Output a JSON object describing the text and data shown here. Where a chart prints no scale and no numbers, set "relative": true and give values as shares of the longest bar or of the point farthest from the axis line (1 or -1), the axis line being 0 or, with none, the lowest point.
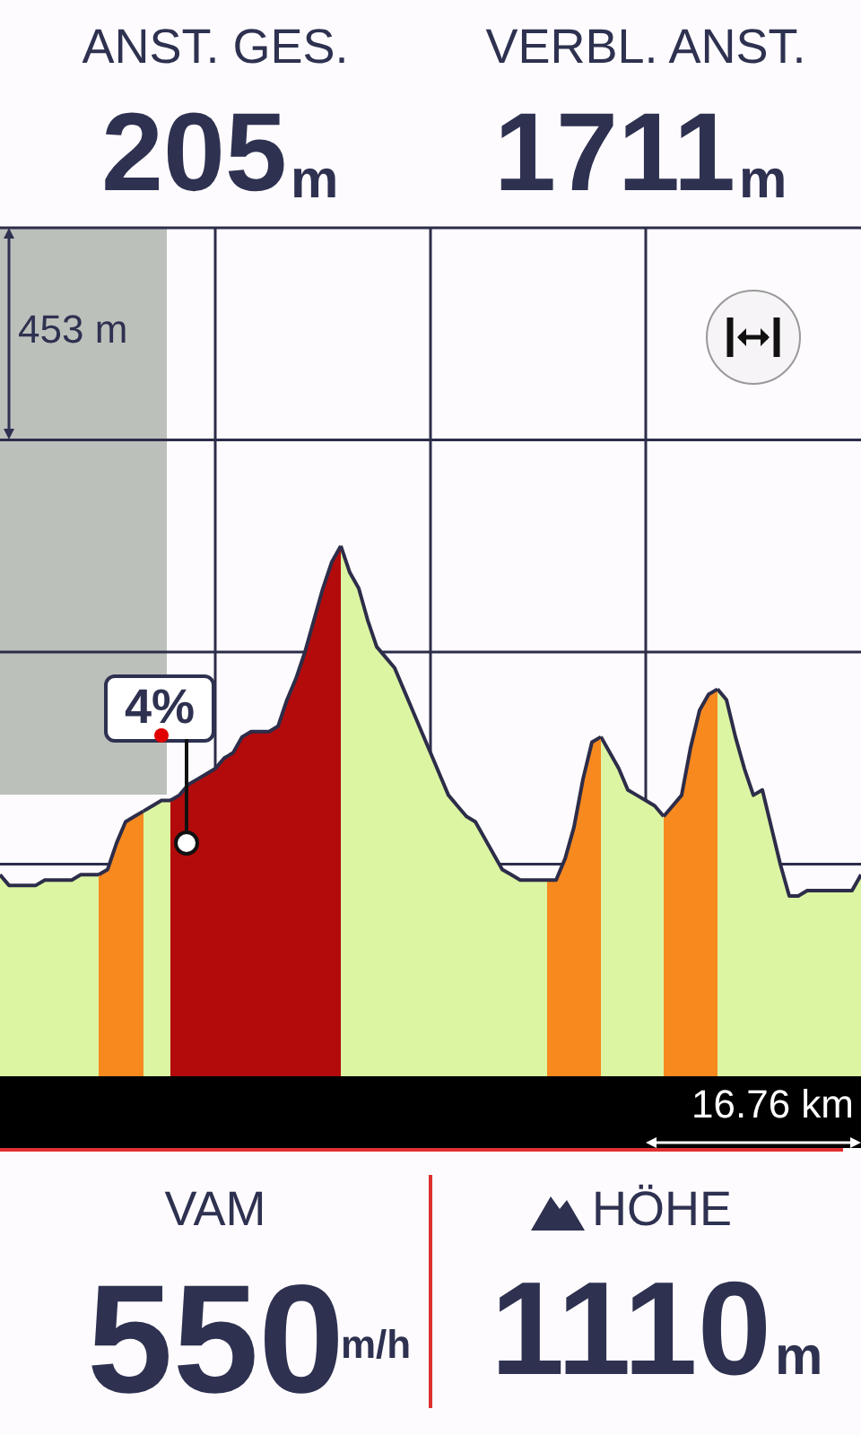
{
  "chart_data": {
    "type": "area",
    "relative": true,
    "grid": true,
    "legend": false,
    "categories": [
      null,
      null,
      null,
      null,
      null,
      null,
      null,
      null,
      null,
      null,
      null,
      null,
      null,
      null,
      null,
      null,
      null,
      null,
      null,
      null,
      null,
      null,
      null,
      null,
      null,
      null,
      null,
      null,
      null,
      null,
      null,
      null,
      null,
      null,
      null,
      null,
      null,
      null,
      null,
      null,
      null,
      null,
      null,
      null,
      null,
      null,
      null,
      null,
      null,
      null,
      null,
      null,
      null,
      null,
      null,
      null,
      null,
      null,
      null,
      null,
      null,
      null,
      null,
      null,
      null,
      null,
      null,
      null,
      null,
      null,
      null,
      null,
      null,
      null,
      null,
      null,
      null,
      null,
      null,
      null,
      null,
      null,
      null,
      null,
      null,
      null,
      null,
      null,
      null,
      null,
      null,
      null,
      null,
      null,
      null,
      null,
      null
    ],
    "series": [
      {
        "color": "#dcf5a2",
        "values": [
          0.38,
          0.36,
          0.36,
          0.36,
          0.36,
          0.37,
          0.37,
          0.37,
          0.37,
          0.38,
          0.38,
          0.38,
          null,
          null,
          null,
          null,
          null,
          null,
          null,
          null,
          null,
          null,
          null,
          null,
          null,
          null,
          null,
          null,
          null,
          null,
          null,
          null,
          null,
          null,
          null,
          null,
          null,
          null,
          null,
          null,
          null,
          null,
          null,
          null,
          null,
          null,
          null,
          null,
          null,
          null,
          null,
          null,
          null,
          null,
          null,
          null,
          null,
          null,
          null,
          null,
          null,
          null,
          null,
          null,
          null,
          null,
          null,
          null,
          null,
          null,
          null,
          null,
          null,
          null,
          null,
          null,
          null,
          null,
          null,
          null,
          null,
          null,
          null,
          null,
          null,
          null,
          null,
          null,
          null,
          null,
          null,
          null,
          null,
          null,
          null,
          null,
          null
        ]
      },
      {
        "color": "#f7891f",
        "values": [
          null,
          null,
          null,
          null,
          null,
          null,
          null,
          null,
          null,
          null,
          null,
          0.38,
          0.39,
          0.44,
          0.48,
          0.49,
          0.5,
          null,
          null,
          null,
          null,
          null,
          null,
          null,
          null,
          null,
          null,
          null,
          null,
          null,
          null,
          null,
          null,
          null,
          null,
          null,
          null,
          null,
          null,
          null,
          null,
          null,
          null,
          null,
          null,
          null,
          null,
          null,
          null,
          null,
          null,
          null,
          null,
          null,
          null,
          null,
          null,
          null,
          null,
          null,
          null,
          null,
          null,
          null,
          null,
          null,
          null,
          null,
          null,
          null,
          null,
          null,
          null,
          null,
          null,
          null,
          null,
          null,
          null,
          null,
          null,
          null,
          null,
          null,
          null,
          null,
          null,
          null,
          null,
          null,
          null,
          null,
          null,
          null,
          null,
          null,
          null
        ]
      },
      {
        "color": "#dcf5a2",
        "values": [
          null,
          null,
          null,
          null,
          null,
          null,
          null,
          null,
          null,
          null,
          null,
          null,
          null,
          null,
          null,
          null,
          0.5,
          0.51,
          0.52,
          0.52,
          null,
          null,
          null,
          null,
          null,
          null,
          null,
          null,
          null,
          null,
          null,
          null,
          null,
          null,
          null,
          null,
          null,
          null,
          null,
          null,
          null,
          null,
          null,
          null,
          null,
          null,
          null,
          null,
          null,
          null,
          null,
          null,
          null,
          null,
          null,
          null,
          null,
          null,
          null,
          null,
          null,
          null,
          null,
          null,
          null,
          null,
          null,
          null,
          null,
          null,
          null,
          null,
          null,
          null,
          null,
          null,
          null,
          null,
          null,
          null,
          null,
          null,
          null,
          null,
          null,
          null,
          null,
          null,
          null,
          null,
          null,
          null,
          null,
          null,
          null,
          null,
          null
        ]
      },
      {
        "color": "#b30b0b",
        "values": [
          null,
          null,
          null,
          null,
          null,
          null,
          null,
          null,
          null,
          null,
          null,
          null,
          null,
          null,
          null,
          null,
          null,
          null,
          null,
          0.52,
          0.53,
          0.55,
          0.56,
          0.57,
          0.58,
          0.6,
          0.61,
          0.64,
          0.65,
          0.65,
          0.65,
          0.66,
          0.71,
          0.75,
          0.8,
          0.86,
          0.92,
          0.97,
          1,
          null,
          null,
          null,
          null,
          null,
          null,
          null,
          null,
          null,
          null,
          null,
          null,
          null,
          null,
          null,
          null,
          null,
          null,
          null,
          null,
          null,
          null,
          null,
          null,
          null,
          null,
          null,
          null,
          null,
          null,
          null,
          null,
          null,
          null,
          null,
          null,
          null,
          null,
          null,
          null,
          null,
          null,
          null,
          null,
          null,
          null,
          null,
          null,
          null,
          null,
          null,
          null,
          null,
          null,
          null,
          null,
          null,
          null
        ]
      },
      {
        "color": "#dcf5a2",
        "values": [
          null,
          null,
          null,
          null,
          null,
          null,
          null,
          null,
          null,
          null,
          null,
          null,
          null,
          null,
          null,
          null,
          null,
          null,
          null,
          null,
          null,
          null,
          null,
          null,
          null,
          null,
          null,
          null,
          null,
          null,
          null,
          null,
          null,
          null,
          null,
          null,
          null,
          null,
          1,
          0.95,
          0.92,
          0.86,
          0.81,
          0.79,
          0.77,
          0.73,
          0.69,
          0.65,
          0.61,
          0.57,
          0.53,
          0.51,
          0.49,
          0.48,
          0.45,
          0.42,
          0.39,
          0.38,
          0.37,
          0.37,
          0.37,
          0.37,
          null,
          null,
          null,
          null,
          null,
          null,
          null,
          null,
          null,
          null,
          null,
          null,
          null,
          null,
          null,
          null,
          null,
          null,
          null,
          null,
          null,
          null,
          null,
          null,
          null,
          null,
          null,
          null,
          null,
          null,
          null,
          null,
          null,
          null,
          null
        ]
      },
      {
        "color": "#f7891f",
        "values": [
          null,
          null,
          null,
          null,
          null,
          null,
          null,
          null,
          null,
          null,
          null,
          null,
          null,
          null,
          null,
          null,
          null,
          null,
          null,
          null,
          null,
          null,
          null,
          null,
          null,
          null,
          null,
          null,
          null,
          null,
          null,
          null,
          null,
          null,
          null,
          null,
          null,
          null,
          null,
          null,
          null,
          null,
          null,
          null,
          null,
          null,
          null,
          null,
          null,
          null,
          null,
          null,
          null,
          null,
          null,
          null,
          null,
          null,
          null,
          null,
          null,
          0.37,
          0.37,
          0.41,
          0.47,
          0.56,
          0.63,
          0.64,
          null,
          null,
          null,
          null,
          null,
          null,
          null,
          null,
          null,
          null,
          null,
          null,
          null,
          null,
          null,
          null,
          null,
          null,
          null,
          null,
          null,
          null,
          null,
          null,
          null,
          null,
          null,
          null,
          null
        ]
      },
      {
        "color": "#dcf5a2",
        "values": [
          null,
          null,
          null,
          null,
          null,
          null,
          null,
          null,
          null,
          null,
          null,
          null,
          null,
          null,
          null,
          null,
          null,
          null,
          null,
          null,
          null,
          null,
          null,
          null,
          null,
          null,
          null,
          null,
          null,
          null,
          null,
          null,
          null,
          null,
          null,
          null,
          null,
          null,
          null,
          null,
          null,
          null,
          null,
          null,
          null,
          null,
          null,
          null,
          null,
          null,
          null,
          null,
          null,
          null,
          null,
          null,
          null,
          null,
          null,
          null,
          null,
          null,
          null,
          null,
          null,
          null,
          null,
          0.64,
          0.61,
          0.58,
          0.54,
          0.53,
          0.52,
          0.51,
          0.49,
          null,
          null,
          null,
          null,
          null,
          null,
          null,
          null,
          null,
          null,
          null,
          null,
          null,
          null,
          null,
          null,
          null,
          null,
          null,
          null,
          null,
          null
        ]
      },
      {
        "color": "#f7891f",
        "values": [
          null,
          null,
          null,
          null,
          null,
          null,
          null,
          null,
          null,
          null,
          null,
          null,
          null,
          null,
          null,
          null,
          null,
          null,
          null,
          null,
          null,
          null,
          null,
          null,
          null,
          null,
          null,
          null,
          null,
          null,
          null,
          null,
          null,
          null,
          null,
          null,
          null,
          null,
          null,
          null,
          null,
          null,
          null,
          null,
          null,
          null,
          null,
          null,
          null,
          null,
          null,
          null,
          null,
          null,
          null,
          null,
          null,
          null,
          null,
          null,
          null,
          null,
          null,
          null,
          null,
          null,
          null,
          null,
          null,
          null,
          null,
          null,
          null,
          null,
          0.49,
          0.51,
          0.53,
          0.62,
          0.69,
          0.72,
          0.73,
          null,
          null,
          null,
          null,
          null,
          null,
          null,
          null,
          null,
          null,
          null,
          null,
          null,
          null,
          null,
          null
        ]
      },
      {
        "color": "#dcf5a2",
        "values": [
          null,
          null,
          null,
          null,
          null,
          null,
          null,
          null,
          null,
          null,
          null,
          null,
          null,
          null,
          null,
          null,
          null,
          null,
          null,
          null,
          null,
          null,
          null,
          null,
          null,
          null,
          null,
          null,
          null,
          null,
          null,
          null,
          null,
          null,
          null,
          null,
          null,
          null,
          null,
          null,
          null,
          null,
          null,
          null,
          null,
          null,
          null,
          null,
          null,
          null,
          null,
          null,
          null,
          null,
          null,
          null,
          null,
          null,
          null,
          null,
          null,
          null,
          null,
          null,
          null,
          null,
          null,
          null,
          null,
          null,
          null,
          null,
          null,
          null,
          null,
          null,
          null,
          null,
          null,
          null,
          0.73,
          0.71,
          0.64,
          0.58,
          0.53,
          0.54,
          0.47,
          0.4,
          0.34,
          0.34,
          0.35,
          0.35,
          0.35,
          0.35,
          0.35,
          0.35,
          0.38
        ]
      }
    ],
    "annotations": [
      "ANST. GES.",
      "205",
      "m",
      "VERBL. ANST.",
      "1711",
      "m",
      "453 m",
      "16.76 km",
      "VAM",
      "550",
      "m/h",
      "HÖHE",
      "1110",
      "m",
      "4%"
    ]
  }
}
